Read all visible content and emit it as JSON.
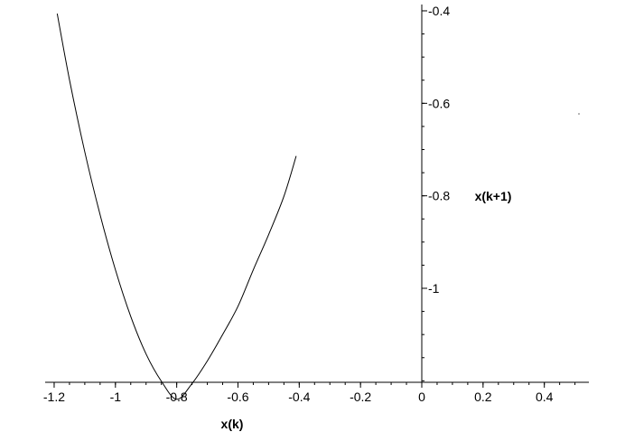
{
  "chart_data": {
    "type": "line",
    "title": "",
    "xlabel": "x(k)",
    "ylabel": "x(k+1)",
    "xlim": [
      -1.25,
      0.55
    ],
    "ylim": [
      -1.3,
      -0.4
    ],
    "x_ticks": [
      -1.2,
      -1,
      -0.8,
      -0.6,
      -0.4,
      -0.2,
      0,
      0.2,
      0.4
    ],
    "x_tick_labels": [
      "-1.2",
      "-1",
      "-0.8",
      "-0.6",
      "-0.4",
      "-0.2",
      "0",
      "0.2",
      "0.4"
    ],
    "y_ticks": [
      -0.4,
      -0.6,
      -0.8,
      -1.0
    ],
    "y_tick_labels": [
      "-0.4",
      "-0.6",
      "-0.8",
      "-1"
    ],
    "x_minor_step": 0.05,
    "y_minor_step": 0.05,
    "grid": false,
    "series": [
      {
        "name": "",
        "color": "#000000",
        "x": [
          -1.19,
          -1.15,
          -1.1,
          -1.05,
          -1.0,
          -0.95,
          -0.9,
          -0.85,
          -0.8,
          -0.75,
          -0.7,
          -0.65,
          -0.6,
          -0.55,
          -0.5,
          -0.45,
          -0.41
        ],
        "y": [
          -0.406,
          -0.549,
          -0.705,
          -0.841,
          -0.96,
          -1.061,
          -1.142,
          -1.201,
          -1.24,
          -1.206,
          -1.157,
          -1.1,
          -1.039,
          -0.96,
          -0.884,
          -0.801,
          -0.714
        ]
      }
    ]
  }
}
